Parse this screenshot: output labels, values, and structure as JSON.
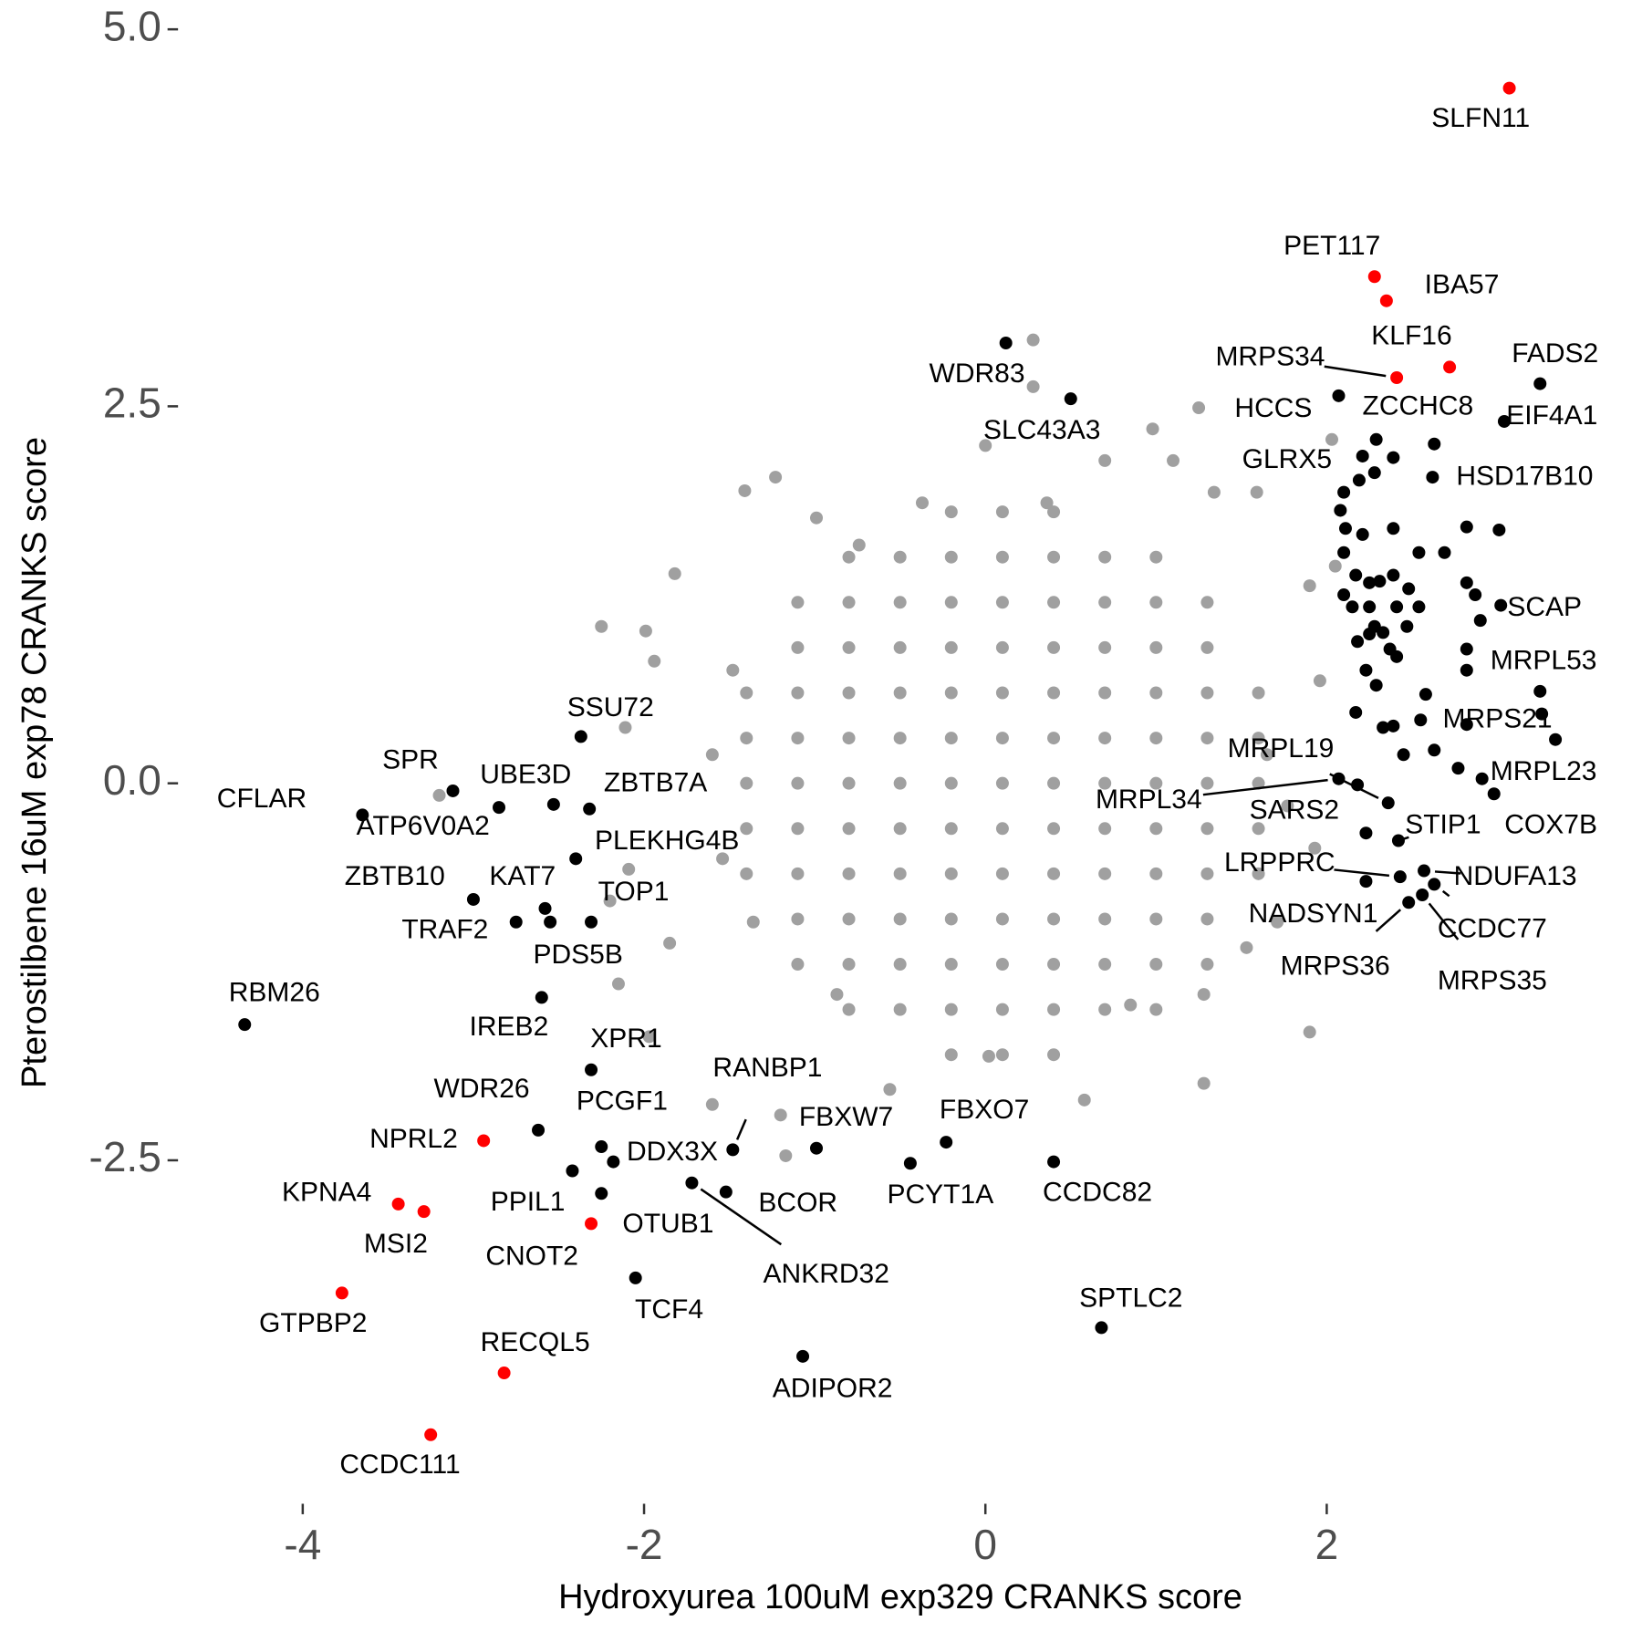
{
  "chart_data": {
    "type": "scatter",
    "x_label": "Hydroxyurea 100uM exp329 CRANKS score",
    "y_label": "Pterostilbene 16uM exp78 CRANKS score",
    "xlim": [
      -4.7,
      3.7
    ],
    "ylim": [
      -4.75,
      5.15
    ],
    "xticks": [
      -4,
      -2,
      0,
      2
    ],
    "yticks": [
      -2.5,
      {
        "value": 0,
        "label": "0.0"
      },
      2.5,
      {
        "value": 5,
        "label": "5.0"
      }
    ],
    "series": [
      {
        "color": "#a0a0a0",
        "x": [
          -0.2,
          0.1,
          0.4,
          -0.8,
          -0.5,
          -0.2,
          0.1,
          0.4,
          0.7,
          1.0,
          -1.1,
          -0.8,
          -0.5,
          -0.2,
          0.1,
          0.4,
          0.7,
          1.0,
          1.3,
          -1.1,
          -0.8,
          -0.5,
          -0.2,
          0.1,
          0.4,
          0.7,
          1.0,
          1.3,
          -1.4,
          -1.1,
          -0.8,
          -0.5,
          -0.2,
          0.1,
          0.4,
          0.7,
          1.0,
          1.3,
          1.6,
          -1.4,
          -1.1,
          -0.8,
          -0.5,
          -0.2,
          0.1,
          0.4,
          0.7,
          1.0,
          1.3,
          1.6,
          -1.4,
          -1.1,
          -0.8,
          -0.5,
          -0.2,
          0.1,
          0.4,
          0.7,
          1.0,
          1.3,
          1.6,
          -1.4,
          -1.1,
          -0.8,
          -0.5,
          -0.2,
          0.1,
          0.4,
          0.7,
          1.0,
          1.3,
          1.6,
          -1.4,
          -1.1,
          -0.8,
          -0.5,
          -0.2,
          0.1,
          0.4,
          0.7,
          1.0,
          1.3,
          1.6,
          -1.1,
          -0.8,
          -0.5,
          -0.2,
          0.1,
          0.4,
          0.7,
          1.0,
          1.3,
          -1.1,
          -0.8,
          -0.5,
          -0.2,
          0.1,
          0.4,
          0.7,
          1.0,
          1.3,
          -0.8,
          -0.5,
          -0.2,
          0.1,
          0.4,
          0.7,
          1.0,
          -0.2,
          0.1,
          0.4,
          0.28,
          0.28,
          0.98,
          1.25,
          2.03,
          0,
          0.7,
          -1.23,
          -1.41,
          -2.25,
          -1.99,
          -1.82,
          -1.94,
          -2.11,
          -3.2,
          -2.09,
          -2.2,
          -1.85,
          -2.15,
          -1.97,
          -1.6,
          -1.2,
          -1.17,
          -0.56,
          0.02,
          0.58,
          1.28,
          1.9,
          1.28,
          1.71,
          1.53,
          1.93,
          1.96,
          1.9,
          2.05,
          1.59,
          1.34,
          1.1,
          -0.99,
          -0.74,
          1.65,
          1.77,
          -1.48,
          -1.6,
          -1.54,
          -1.36,
          -0.87,
          0.85,
          0.36,
          -0.37
        ],
        "values": [
          1.8,
          1.8,
          1.8,
          1.5,
          1.5,
          1.5,
          1.5,
          1.5,
          1.5,
          1.5,
          1.2,
          1.2,
          1.2,
          1.2,
          1.2,
          1.2,
          1.2,
          1.2,
          1.2,
          0.9,
          0.9,
          0.9,
          0.9,
          0.9,
          0.9,
          0.9,
          0.9,
          0.9,
          0.6,
          0.6,
          0.6,
          0.6,
          0.6,
          0.6,
          0.6,
          0.6,
          0.6,
          0.6,
          0.6,
          0.3,
          0.3,
          0.3,
          0.3,
          0.3,
          0.3,
          0.3,
          0.3,
          0.3,
          0.3,
          0.3,
          0,
          0,
          0,
          0,
          0,
          0,
          0,
          0,
          0,
          0,
          0,
          -0.3,
          -0.3,
          -0.3,
          -0.3,
          -0.3,
          -0.3,
          -0.3,
          -0.3,
          -0.3,
          -0.3,
          -0.3,
          -0.6,
          -0.6,
          -0.6,
          -0.6,
          -0.6,
          -0.6,
          -0.6,
          -0.6,
          -0.6,
          -0.6,
          -0.6,
          -0.9,
          -0.9,
          -0.9,
          -0.9,
          -0.9,
          -0.9,
          -0.9,
          -0.9,
          -0.9,
          -1.2,
          -1.2,
          -1.2,
          -1.2,
          -1.2,
          -1.2,
          -1.2,
          -1.2,
          -1.2,
          -1.5,
          -1.5,
          -1.5,
          -1.5,
          -1.5,
          -1.5,
          -1.5,
          -1.8,
          -1.8,
          -1.8,
          2.94,
          2.63,
          2.35,
          2.49,
          2.28,
          2.24,
          2.14,
          2.03,
          1.94,
          1.04,
          1.01,
          1.39,
          0.81,
          0.37,
          -0.08,
          -0.57,
          -0.78,
          -1.06,
          -1.33,
          -1.68,
          -2.13,
          -2.2,
          -2.47,
          -2.03,
          -1.81,
          -2.1,
          -1.99,
          -1.65,
          -1.4,
          -0.92,
          -1.09,
          -0.43,
          0.68,
          1.31,
          1.44,
          1.93,
          1.93,
          2.14,
          1.76,
          1.58,
          0.19,
          -0.15,
          0.75,
          0.19,
          -0.5,
          -0.92,
          -1.4,
          -1.47,
          1.86,
          1.86
        ]
      },
      {
        "color": "#000000",
        "x": [
          2.1,
          2.19,
          2.28,
          2.08,
          2.11,
          2.21,
          2.39,
          2.54,
          2.69,
          2.82,
          3.01,
          2.1,
          2.17,
          2.25,
          2.31,
          2.39,
          2.48,
          2.54,
          2.41,
          2.25,
          2.15,
          2.1,
          2.82,
          2.87,
          2.9,
          2.82,
          2.82,
          2.37,
          2.41,
          2.33,
          2.25,
          2.18,
          2.23,
          2.29,
          2.58,
          2.17,
          2.33,
          2.39,
          2.55,
          2.82,
          2.45,
          2.63,
          2.77,
          2.91,
          2.18,
          2.29,
          2.39,
          2.28,
          2.47
        ],
        "values": [
          1.93,
          2.01,
          2.06,
          1.81,
          1.69,
          1.65,
          1.69,
          1.53,
          1.53,
          1.7,
          1.68,
          1.53,
          1.38,
          1.33,
          1.34,
          1.38,
          1.29,
          1.17,
          1.17,
          1.17,
          1.17,
          1.25,
          1.33,
          1.25,
          1.08,
          0.89,
          0.75,
          0.89,
          0.84,
          1.0,
          0.99,
          0.94,
          0.75,
          0.65,
          0.59,
          0.47,
          0.37,
          0.38,
          0.42,
          0.39,
          0.19,
          0.22,
          0.1,
          0.03,
          -0.01,
          2.28,
          2.16,
          1.04,
          1.04
        ]
      },
      {
        "color": "#000000",
        "labels": [
          "WDR83",
          "SLC43A3",
          "FADS2",
          "EIF4A1",
          "HCCS",
          "ZCCHC8",
          "GLRX5",
          "HSD17B10",
          "SCAP",
          "MRPL53",
          "MRPS21",
          "MRPL23",
          "COX7B",
          "MRPL19",
          "MRPL34",
          "SARS2",
          "STIP1",
          "NDUFA13",
          "LRPPRC",
          "NADSYN1",
          "CCDC77",
          "MRPS36",
          "MRPS35",
          "SSU72",
          "SPR",
          "UBE3D",
          "CFLAR",
          "ATP6V0A2",
          "ZBTB7A",
          "PLEKHG4B",
          "ZBTB10",
          "KAT7",
          "TOP1",
          "TRAF2",
          "PDS5B",
          "RBM26",
          "IREB2",
          "XPR1",
          "WDR26",
          "PCGF1",
          "RANBP1",
          "DDX3X",
          "PPIL1",
          "CNOT2",
          "FBXW7",
          "FBXO7",
          "PCYT1A",
          "CCDC82",
          "BCOR",
          "ANKRD32",
          "TCF4",
          "ADIPOR2",
          "SPTLC2"
        ],
        "x": [
          0.12,
          0.5,
          3.25,
          3.04,
          2.07,
          2.63,
          2.21,
          2.62,
          3.02,
          3.25,
          3.26,
          3.34,
          2.98,
          2.36,
          2.07,
          2.23,
          2.42,
          2.57,
          2.43,
          2.23,
          2.63,
          2.48,
          2.56,
          -2.37,
          -3.12,
          -2.53,
          -3.65,
          -2.85,
          -2.32,
          -2.4,
          -3.0,
          -2.58,
          -2.31,
          -2.75,
          -2.55,
          -4.34,
          -2.6,
          -2.31,
          -2.62,
          -2.25,
          -1.48,
          -2.18,
          -2.42,
          -2.25,
          -0.99,
          -0.23,
          -0.44,
          0.4,
          -1.52,
          -1.72,
          -2.05,
          -1.07,
          0.68
        ],
        "values": [
          2.92,
          2.55,
          2.65,
          2.4,
          2.57,
          2.25,
          2.17,
          2.03,
          1.18,
          0.61,
          0.46,
          0.29,
          -0.07,
          -0.13,
          0.03,
          -0.33,
          -0.38,
          -0.58,
          -0.62,
          -0.65,
          -0.67,
          -0.79,
          -0.74,
          0.31,
          -0.05,
          -0.14,
          -0.21,
          -0.16,
          -0.17,
          -0.5,
          -0.77,
          -0.83,
          -0.92,
          -0.92,
          -0.92,
          -1.6,
          -1.42,
          -1.9,
          -2.3,
          -2.41,
          -2.43,
          -2.51,
          -2.57,
          -2.72,
          -2.42,
          -2.38,
          -2.52,
          -2.51,
          -2.71,
          -2.65,
          -3.28,
          -3.8,
          -3.61
        ]
      },
      {
        "color": "#ff0000",
        "labels": [
          "SLFN11",
          "PET117",
          "IBA57",
          "KLF16",
          "MRPS34",
          "NPRL2",
          "KPNA4",
          "MSI2",
          "OTUB1",
          "GTPBP2",
          "RECQL5",
          "CCDC111"
        ],
        "x": [
          3.07,
          2.28,
          2.35,
          2.72,
          2.41,
          -2.94,
          -3.44,
          -3.29,
          -2.31,
          -3.77,
          -2.82,
          -3.25
        ],
        "values": [
          4.61,
          3.36,
          3.2,
          2.76,
          2.69,
          -2.37,
          -2.79,
          -2.84,
          -2.92,
          -3.38,
          -3.91,
          -4.32
        ]
      }
    ]
  }
}
